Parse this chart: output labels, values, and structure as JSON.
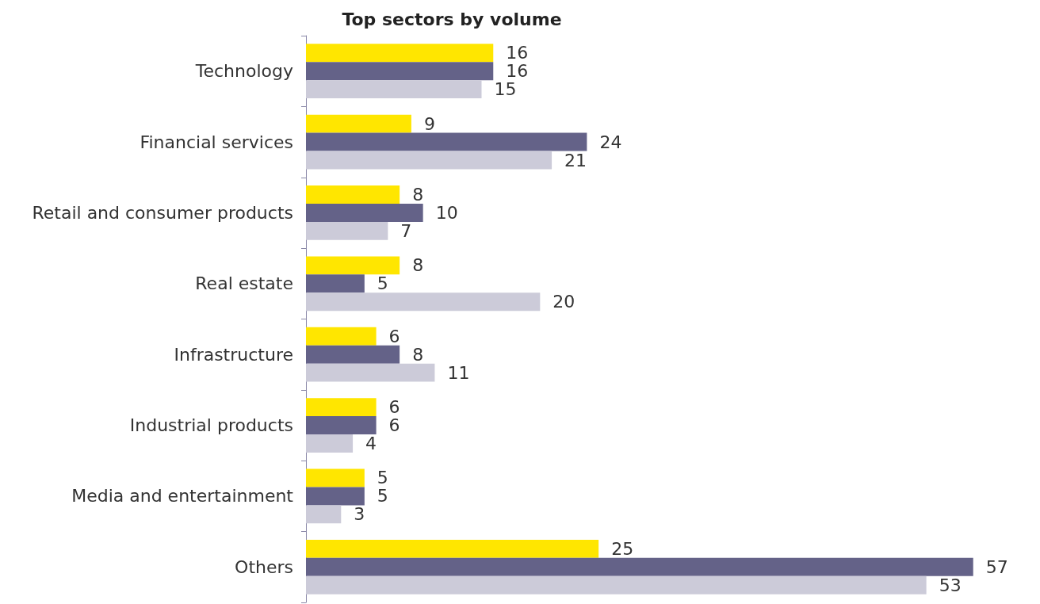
{
  "chart_data": {
    "type": "bar",
    "orientation": "horizontal",
    "title": "Top sectors by volume",
    "categories": [
      "Technology",
      "Financial services",
      "Retail and consumer products",
      "Real estate",
      "Infrastructure",
      "Industrial products",
      "Media and entertainment",
      "Others"
    ],
    "series": [
      {
        "color": "#ffe600",
        "values": [
          16,
          9,
          8,
          8,
          6,
          6,
          5,
          25
        ]
      },
      {
        "color": "#646288",
        "values": [
          16,
          24,
          10,
          5,
          8,
          6,
          5,
          57
        ]
      },
      {
        "color": "#cccbd9",
        "values": [
          15,
          21,
          7,
          20,
          11,
          4,
          3,
          53
        ]
      }
    ],
    "data_labels": true
  }
}
